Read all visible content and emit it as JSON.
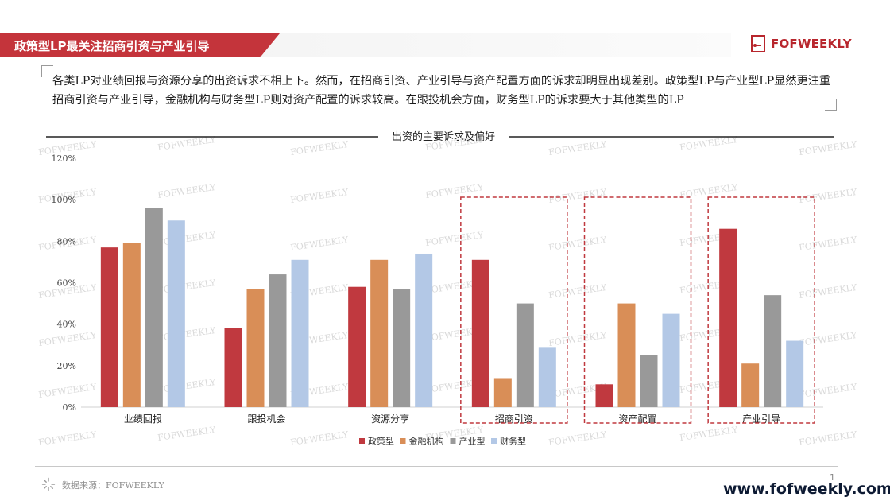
{
  "header": {
    "title": "政策型LP最关注招商引资与产业引导",
    "logo_text": "FOFWEEKLY",
    "brand_color": "#c4343b"
  },
  "summary": "各类LP对业绩回报与资源分享的出资诉求不相上下。然而，在招商引资、产业引导与资产配置方面的诉求却明显出现差别。政策型LP与产业型LP显然更注重招商引资与产业引导，金融机构与财务型LP则对资产配置的诉求较高。在跟投机会方面，财务型LP的诉求要大于其他类型的LP",
  "watermark": "FOFWEEKLY",
  "chart_data": {
    "type": "bar",
    "title": "出资的主要诉求及偏好",
    "categories": [
      "业绩回报",
      "跟投机会",
      "资源分享",
      "招商引资",
      "资产配置",
      "产业引导"
    ],
    "y_ticks": [
      "0%",
      "20%",
      "40%",
      "60%",
      "80%",
      "100%",
      "120%"
    ],
    "ylim": [
      0,
      120
    ],
    "series": [
      {
        "name": "政策型",
        "color": "#c0393f",
        "values": [
          77,
          38,
          58,
          71,
          11,
          86
        ]
      },
      {
        "name": "金融机构",
        "color": "#d98e57",
        "values": [
          79,
          57,
          71,
          14,
          50,
          21
        ]
      },
      {
        "name": "产业型",
        "color": "#999999",
        "values": [
          96,
          64,
          57,
          50,
          25,
          54
        ]
      },
      {
        "name": "财务型",
        "color": "#b3c8e6",
        "values": [
          90,
          71,
          74,
          29,
          45,
          32
        ]
      }
    ],
    "highlighted_categories": [
      "招商引资",
      "资产配置",
      "产业引导"
    ],
    "highlight_color": "#c0393f",
    "legend_position": "bottom"
  },
  "footer": {
    "source": "数据来源：FOFWEEKLY",
    "page_number": "1",
    "website": "www.fofweekly.com"
  }
}
